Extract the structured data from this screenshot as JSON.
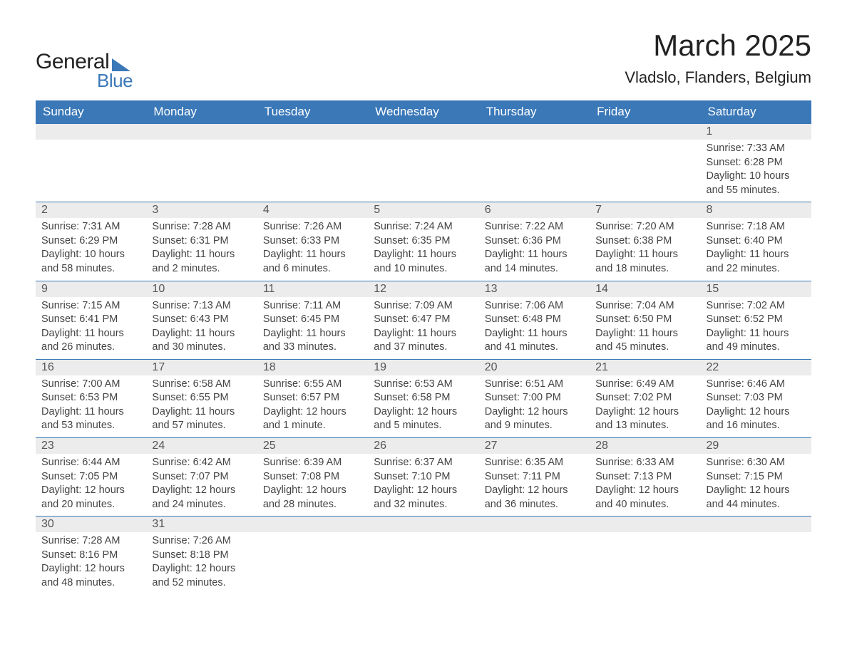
{
  "logo": {
    "word1": "General",
    "word2": "Blue"
  },
  "title": "March 2025",
  "location": "Vladslo, Flanders, Belgium",
  "colors": {
    "header_bg": "#3a78b8",
    "header_text": "#ffffff",
    "daynum_bg": "#ececec",
    "daynum_text": "#555555",
    "body_text": "#444444",
    "rule": "#3a78b8",
    "page_bg": "#ffffff",
    "logo_accent": "#3a78b8"
  },
  "typography": {
    "title_fontsize": 42,
    "location_fontsize": 22,
    "header_fontsize": 17,
    "daynum_fontsize": 16,
    "detail_fontsize": 14.5,
    "logo_fontsize": 30
  },
  "layout": {
    "columns": 7,
    "rows": 6,
    "start_day_index": 6
  },
  "weekdays": [
    "Sunday",
    "Monday",
    "Tuesday",
    "Wednesday",
    "Thursday",
    "Friday",
    "Saturday"
  ],
  "weeks": [
    [
      {
        "blank": true
      },
      {
        "blank": true
      },
      {
        "blank": true
      },
      {
        "blank": true
      },
      {
        "blank": true
      },
      {
        "blank": true
      },
      {
        "day": "1",
        "sunrise": "Sunrise: 7:33 AM",
        "sunset": "Sunset: 6:28 PM",
        "daylight": "Daylight: 10 hours and 55 minutes."
      }
    ],
    [
      {
        "day": "2",
        "sunrise": "Sunrise: 7:31 AM",
        "sunset": "Sunset: 6:29 PM",
        "daylight": "Daylight: 10 hours and 58 minutes."
      },
      {
        "day": "3",
        "sunrise": "Sunrise: 7:28 AM",
        "sunset": "Sunset: 6:31 PM",
        "daylight": "Daylight: 11 hours and 2 minutes."
      },
      {
        "day": "4",
        "sunrise": "Sunrise: 7:26 AM",
        "sunset": "Sunset: 6:33 PM",
        "daylight": "Daylight: 11 hours and 6 minutes."
      },
      {
        "day": "5",
        "sunrise": "Sunrise: 7:24 AM",
        "sunset": "Sunset: 6:35 PM",
        "daylight": "Daylight: 11 hours and 10 minutes."
      },
      {
        "day": "6",
        "sunrise": "Sunrise: 7:22 AM",
        "sunset": "Sunset: 6:36 PM",
        "daylight": "Daylight: 11 hours and 14 minutes."
      },
      {
        "day": "7",
        "sunrise": "Sunrise: 7:20 AM",
        "sunset": "Sunset: 6:38 PM",
        "daylight": "Daylight: 11 hours and 18 minutes."
      },
      {
        "day": "8",
        "sunrise": "Sunrise: 7:18 AM",
        "sunset": "Sunset: 6:40 PM",
        "daylight": "Daylight: 11 hours and 22 minutes."
      }
    ],
    [
      {
        "day": "9",
        "sunrise": "Sunrise: 7:15 AM",
        "sunset": "Sunset: 6:41 PM",
        "daylight": "Daylight: 11 hours and 26 minutes."
      },
      {
        "day": "10",
        "sunrise": "Sunrise: 7:13 AM",
        "sunset": "Sunset: 6:43 PM",
        "daylight": "Daylight: 11 hours and 30 minutes."
      },
      {
        "day": "11",
        "sunrise": "Sunrise: 7:11 AM",
        "sunset": "Sunset: 6:45 PM",
        "daylight": "Daylight: 11 hours and 33 minutes."
      },
      {
        "day": "12",
        "sunrise": "Sunrise: 7:09 AM",
        "sunset": "Sunset: 6:47 PM",
        "daylight": "Daylight: 11 hours and 37 minutes."
      },
      {
        "day": "13",
        "sunrise": "Sunrise: 7:06 AM",
        "sunset": "Sunset: 6:48 PM",
        "daylight": "Daylight: 11 hours and 41 minutes."
      },
      {
        "day": "14",
        "sunrise": "Sunrise: 7:04 AM",
        "sunset": "Sunset: 6:50 PM",
        "daylight": "Daylight: 11 hours and 45 minutes."
      },
      {
        "day": "15",
        "sunrise": "Sunrise: 7:02 AM",
        "sunset": "Sunset: 6:52 PM",
        "daylight": "Daylight: 11 hours and 49 minutes."
      }
    ],
    [
      {
        "day": "16",
        "sunrise": "Sunrise: 7:00 AM",
        "sunset": "Sunset: 6:53 PM",
        "daylight": "Daylight: 11 hours and 53 minutes."
      },
      {
        "day": "17",
        "sunrise": "Sunrise: 6:58 AM",
        "sunset": "Sunset: 6:55 PM",
        "daylight": "Daylight: 11 hours and 57 minutes."
      },
      {
        "day": "18",
        "sunrise": "Sunrise: 6:55 AM",
        "sunset": "Sunset: 6:57 PM",
        "daylight": "Daylight: 12 hours and 1 minute."
      },
      {
        "day": "19",
        "sunrise": "Sunrise: 6:53 AM",
        "sunset": "Sunset: 6:58 PM",
        "daylight": "Daylight: 12 hours and 5 minutes."
      },
      {
        "day": "20",
        "sunrise": "Sunrise: 6:51 AM",
        "sunset": "Sunset: 7:00 PM",
        "daylight": "Daylight: 12 hours and 9 minutes."
      },
      {
        "day": "21",
        "sunrise": "Sunrise: 6:49 AM",
        "sunset": "Sunset: 7:02 PM",
        "daylight": "Daylight: 12 hours and 13 minutes."
      },
      {
        "day": "22",
        "sunrise": "Sunrise: 6:46 AM",
        "sunset": "Sunset: 7:03 PM",
        "daylight": "Daylight: 12 hours and 16 minutes."
      }
    ],
    [
      {
        "day": "23",
        "sunrise": "Sunrise: 6:44 AM",
        "sunset": "Sunset: 7:05 PM",
        "daylight": "Daylight: 12 hours and 20 minutes."
      },
      {
        "day": "24",
        "sunrise": "Sunrise: 6:42 AM",
        "sunset": "Sunset: 7:07 PM",
        "daylight": "Daylight: 12 hours and 24 minutes."
      },
      {
        "day": "25",
        "sunrise": "Sunrise: 6:39 AM",
        "sunset": "Sunset: 7:08 PM",
        "daylight": "Daylight: 12 hours and 28 minutes."
      },
      {
        "day": "26",
        "sunrise": "Sunrise: 6:37 AM",
        "sunset": "Sunset: 7:10 PM",
        "daylight": "Daylight: 12 hours and 32 minutes."
      },
      {
        "day": "27",
        "sunrise": "Sunrise: 6:35 AM",
        "sunset": "Sunset: 7:11 PM",
        "daylight": "Daylight: 12 hours and 36 minutes."
      },
      {
        "day": "28",
        "sunrise": "Sunrise: 6:33 AM",
        "sunset": "Sunset: 7:13 PM",
        "daylight": "Daylight: 12 hours and 40 minutes."
      },
      {
        "day": "29",
        "sunrise": "Sunrise: 6:30 AM",
        "sunset": "Sunset: 7:15 PM",
        "daylight": "Daylight: 12 hours and 44 minutes."
      }
    ],
    [
      {
        "day": "30",
        "sunrise": "Sunrise: 7:28 AM",
        "sunset": "Sunset: 8:16 PM",
        "daylight": "Daylight: 12 hours and 48 minutes."
      },
      {
        "day": "31",
        "sunrise": "Sunrise: 7:26 AM",
        "sunset": "Sunset: 8:18 PM",
        "daylight": "Daylight: 12 hours and 52 minutes."
      },
      {
        "blank": true
      },
      {
        "blank": true
      },
      {
        "blank": true
      },
      {
        "blank": true
      },
      {
        "blank": true
      }
    ]
  ]
}
